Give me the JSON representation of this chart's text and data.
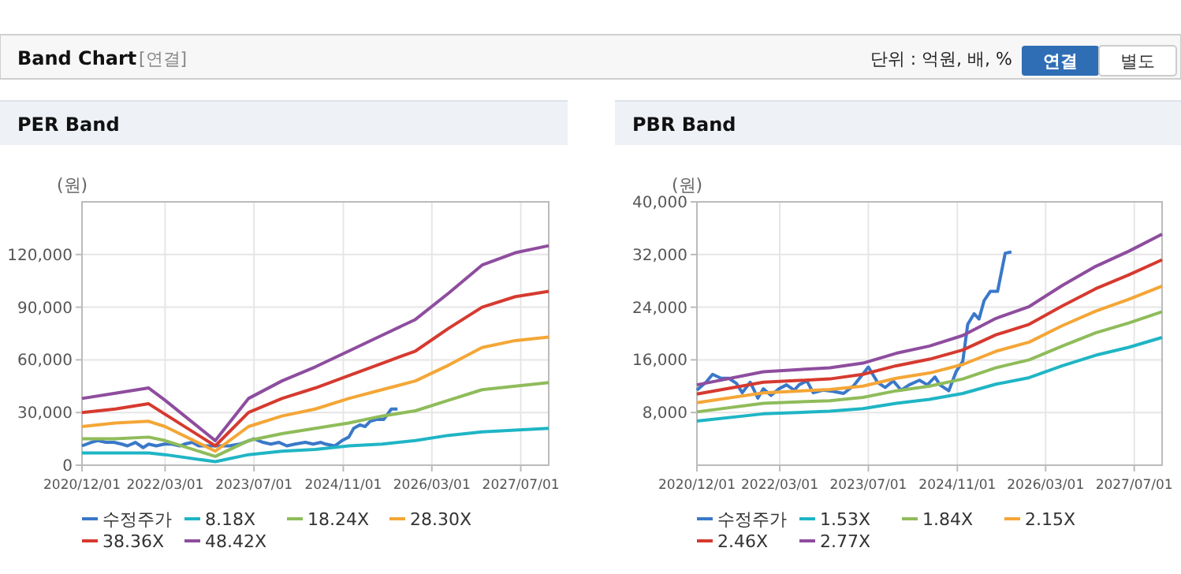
{
  "chart_data": [
    {
      "type": "other",
      "title": "Band Chart",
      "annotations": [
        "[연결]",
        "단위 : 억원, 배, %",
        "연결",
        "별도"
      ]
    },
    {
      "type": "line",
      "title": "PER Band",
      "ylabel": "(원)",
      "xlim": [
        "2020-12-01",
        "2027-12-01"
      ],
      "xticks": [
        {
          "value": "2020-12-01",
          "label": "2020/12/01"
        },
        {
          "value": "2022-03-01",
          "label": "2022/03/01"
        },
        {
          "value": "2023-07-01",
          "label": "2023/07/01"
        },
        {
          "value": "2024-11-01",
          "label": "2024/11/01"
        },
        {
          "value": "2026-03-01",
          "label": "2026/03/01"
        },
        {
          "value": "2027-07-01",
          "label": "2027/07/01"
        }
      ],
      "ylim": [
        0,
        150000
      ],
      "yticks": [
        {
          "value": 0,
          "label": "0"
        },
        {
          "value": 30000,
          "label": "30,000"
        },
        {
          "value": 60000,
          "label": "60,000"
        },
        {
          "value": 90000,
          "label": "90,000"
        },
        {
          "value": 120000,
          "label": "120,000"
        }
      ],
      "grid": true,
      "legend": "bottom",
      "marker": "none",
      "series": [
        {
          "name": "수정주가",
          "color": "#3a78c9",
          "x": [
            "2020-12-01",
            "2021-01-20",
            "2021-02-25",
            "2021-04-12",
            "2021-05-25",
            "2021-07-07",
            "2021-08-07",
            "2021-09-20",
            "2021-11-01",
            "2021-12-01",
            "2022-01-12",
            "2022-02-25",
            "2022-04-07",
            "2022-05-20",
            "2022-06-15",
            "2022-07-28",
            "2022-09-01",
            "2022-10-25",
            "2022-12-22",
            "2023-02-15",
            "2023-04-12",
            "2023-07-01",
            "2023-08-20",
            "2023-10-01",
            "2023-11-15",
            "2023-12-28",
            "2024-02-10",
            "2024-04-07",
            "2024-05-20",
            "2024-07-01",
            "2024-07-28",
            "2024-09-15",
            "2024-10-25",
            "2024-12-01",
            "2024-12-28",
            "2025-02-01",
            "2025-02-28",
            "2025-03-28",
            "2025-05-01",
            "2025-06-10",
            "2025-07-22",
            "2025-08-25"
          ],
          "values": [
            11000,
            13000,
            14000,
            13000,
            13000,
            12000,
            11000,
            13000,
            10000,
            12000,
            11000,
            12000,
            12000,
            11000,
            12000,
            13000,
            11000,
            11000,
            11000,
            11000,
            12000,
            15000,
            13000,
            12000,
            13000,
            11000,
            12000,
            13000,
            12000,
            13000,
            12000,
            11000,
            14000,
            16000,
            21000,
            23000,
            22000,
            25000,
            26000,
            26000,
            32000,
            32000
          ]
        },
        {
          "name": "8.18X",
          "color": "#1fb5c5",
          "x": [
            "2020-12-01",
            "2021-06-01",
            "2021-12-01",
            "2022-03-01",
            "2022-12-01",
            "2023-06-01",
            "2023-12-01",
            "2024-06-01",
            "2024-12-01",
            "2025-06-01",
            "2025-12-01",
            "2026-06-01",
            "2026-12-01",
            "2027-06-01",
            "2027-12-01"
          ],
          "values": [
            7000,
            7000,
            7000,
            6000,
            2000,
            6000,
            8000,
            9000,
            11000,
            12000,
            14000,
            17000,
            19000,
            20000,
            21000
          ]
        },
        {
          "name": "18.24X",
          "color": "#8fbc5a",
          "x": [
            "2020-12-01",
            "2021-06-01",
            "2021-12-01",
            "2022-03-01",
            "2022-12-01",
            "2023-06-01",
            "2023-12-01",
            "2024-06-01",
            "2024-12-01",
            "2025-06-01",
            "2025-12-01",
            "2026-06-01",
            "2026-12-01",
            "2027-06-01",
            "2027-12-01"
          ],
          "values": [
            15000,
            15000,
            16000,
            14000,
            5000,
            14000,
            18000,
            21000,
            24000,
            28000,
            31000,
            37000,
            43000,
            45000,
            47000
          ]
        },
        {
          "name": "28.30X",
          "color": "#f4a636",
          "x": [
            "2020-12-01",
            "2021-06-01",
            "2021-12-01",
            "2022-03-01",
            "2022-12-01",
            "2023-06-01",
            "2023-12-01",
            "2024-06-01",
            "2024-12-01",
            "2025-06-01",
            "2025-12-01",
            "2026-06-01",
            "2026-12-01",
            "2027-06-01",
            "2027-12-01"
          ],
          "values": [
            22000,
            24000,
            25000,
            22000,
            8000,
            22000,
            28000,
            32000,
            38000,
            43000,
            48000,
            57000,
            67000,
            71000,
            73000
          ]
        },
        {
          "name": "38.36X",
          "color": "#d63a2f",
          "x": [
            "2020-12-01",
            "2021-06-01",
            "2021-12-01",
            "2022-03-01",
            "2022-12-01",
            "2023-06-01",
            "2023-12-01",
            "2024-06-01",
            "2024-12-01",
            "2025-06-01",
            "2025-12-01",
            "2026-06-01",
            "2026-12-01",
            "2027-06-01",
            "2027-12-01"
          ],
          "values": [
            30000,
            32000,
            35000,
            29000,
            11000,
            30000,
            38000,
            44000,
            51000,
            58000,
            65000,
            78000,
            90000,
            96000,
            99000
          ]
        },
        {
          "name": "48.42X",
          "color": "#8e4d9e",
          "x": [
            "2020-12-01",
            "2021-06-01",
            "2021-12-01",
            "2022-03-01",
            "2022-12-01",
            "2023-06-01",
            "2023-12-01",
            "2024-06-01",
            "2024-12-01",
            "2025-06-01",
            "2025-12-01",
            "2026-06-01",
            "2026-12-01",
            "2027-06-01",
            "2027-12-01"
          ],
          "values": [
            38000,
            41000,
            44000,
            37000,
            14000,
            38000,
            48000,
            56000,
            65000,
            74000,
            83000,
            98000,
            114000,
            121000,
            125000
          ]
        }
      ]
    },
    {
      "type": "line",
      "title": "PBR Band",
      "ylabel": "(원)",
      "xlim": [
        "2020-12-01",
        "2027-12-01"
      ],
      "xticks": [
        {
          "value": "2020-12-01",
          "label": "2020/12/01"
        },
        {
          "value": "2022-03-01",
          "label": "2022/03/01"
        },
        {
          "value": "2023-07-01",
          "label": "2023/07/01"
        },
        {
          "value": "2024-11-01",
          "label": "2024/11/01"
        },
        {
          "value": "2026-03-01",
          "label": "2026/03/01"
        },
        {
          "value": "2027-07-01",
          "label": "2027/07/01"
        }
      ],
      "ylim": [
        0,
        40000
      ],
      "yticks": [
        {
          "value": 8000,
          "label": "8,000"
        },
        {
          "value": 16000,
          "label": "16,000"
        },
        {
          "value": 24000,
          "label": "24,000"
        },
        {
          "value": 32000,
          "label": "32,000"
        },
        {
          "value": 40000,
          "label": "40,000"
        }
      ],
      "grid": true,
      "legend": "bottom",
      "marker": "none",
      "series": [
        {
          "name": "수정주가",
          "color": "#3a78c9",
          "x": [
            "2020-12-01",
            "2021-01-20",
            "2021-02-25",
            "2021-04-12",
            "2021-05-25",
            "2021-07-07",
            "2021-08-07",
            "2021-09-20",
            "2021-11-01",
            "2021-12-01",
            "2022-01-12",
            "2022-02-25",
            "2022-04-07",
            "2022-05-20",
            "2022-06-15",
            "2022-07-28",
            "2022-09-01",
            "2022-10-25",
            "2022-12-22",
            "2023-02-15",
            "2023-04-12",
            "2023-07-01",
            "2023-08-20",
            "2023-10-01",
            "2023-11-15",
            "2023-12-28",
            "2024-02-10",
            "2024-04-07",
            "2024-05-20",
            "2024-07-01",
            "2024-07-28",
            "2024-09-15",
            "2024-10-25",
            "2024-12-01",
            "2024-12-28",
            "2025-02-01",
            "2025-02-28",
            "2025-03-28",
            "2025-05-01",
            "2025-06-10",
            "2025-07-22",
            "2025-08-25"
          ],
          "values": [
            11400,
            12600,
            13800,
            13200,
            13200,
            12400,
            11000,
            12600,
            10200,
            11600,
            10600,
            11600,
            12200,
            11400,
            12200,
            12800,
            11000,
            11400,
            11200,
            10900,
            12100,
            14900,
            12600,
            11800,
            12800,
            11400,
            12200,
            12900,
            12200,
            13400,
            12200,
            11300,
            14200,
            15800,
            21400,
            23000,
            22200,
            25000,
            26400,
            26400,
            32200,
            32400
          ]
        },
        {
          "name": "1.53X",
          "color": "#1fb5c5",
          "x": [
            "2020-12-01",
            "2021-12-01",
            "2022-12-01",
            "2023-06-01",
            "2023-12-01",
            "2024-06-01",
            "2024-12-01",
            "2025-06-01",
            "2025-12-01",
            "2026-06-01",
            "2026-12-01",
            "2027-06-01",
            "2027-12-01"
          ],
          "values": [
            6700,
            7800,
            8200,
            8600,
            9400,
            10000,
            10900,
            12300,
            13300,
            15100,
            16700,
            17900,
            19400
          ]
        },
        {
          "name": "1.84X",
          "color": "#8fbc5a",
          "x": [
            "2020-12-01",
            "2021-12-01",
            "2022-12-01",
            "2023-06-01",
            "2023-12-01",
            "2024-06-01",
            "2024-12-01",
            "2025-06-01",
            "2025-12-01",
            "2026-06-01",
            "2026-12-01",
            "2027-06-01",
            "2027-12-01"
          ],
          "values": [
            8100,
            9400,
            9800,
            10300,
            11300,
            12000,
            13100,
            14800,
            16000,
            18100,
            20100,
            21600,
            23300
          ]
        },
        {
          "name": "2.15X",
          "color": "#f4a636",
          "x": [
            "2020-12-01",
            "2021-12-01",
            "2022-12-01",
            "2023-06-01",
            "2023-12-01",
            "2024-06-01",
            "2024-12-01",
            "2025-06-01",
            "2025-12-01",
            "2026-06-01",
            "2026-12-01",
            "2027-06-01",
            "2027-12-01"
          ],
          "values": [
            9500,
            11000,
            11500,
            12000,
            13200,
            14000,
            15300,
            17300,
            18700,
            21200,
            23400,
            25200,
            27200
          ]
        },
        {
          "name": "2.46X",
          "color": "#d63a2f",
          "x": [
            "2020-12-01",
            "2021-12-01",
            "2022-12-01",
            "2023-06-01",
            "2023-12-01",
            "2024-06-01",
            "2024-12-01",
            "2025-06-01",
            "2025-12-01",
            "2026-06-01",
            "2026-12-01",
            "2027-06-01",
            "2027-12-01"
          ],
          "values": [
            10800,
            12600,
            13100,
            13800,
            15100,
            16100,
            17500,
            19800,
            21400,
            24200,
            26800,
            28900,
            31200
          ]
        },
        {
          "name": "2.77X",
          "color": "#8e4d9e",
          "x": [
            "2020-12-01",
            "2021-12-01",
            "2022-12-01",
            "2023-06-01",
            "2023-12-01",
            "2024-06-01",
            "2024-12-01",
            "2025-06-01",
            "2025-12-01",
            "2026-06-01",
            "2026-12-01",
            "2027-06-01",
            "2027-12-01"
          ],
          "values": [
            12200,
            14200,
            14800,
            15500,
            17000,
            18100,
            19700,
            22300,
            24100,
            27300,
            30200,
            32500,
            35100
          ]
        }
      ]
    }
  ]
}
